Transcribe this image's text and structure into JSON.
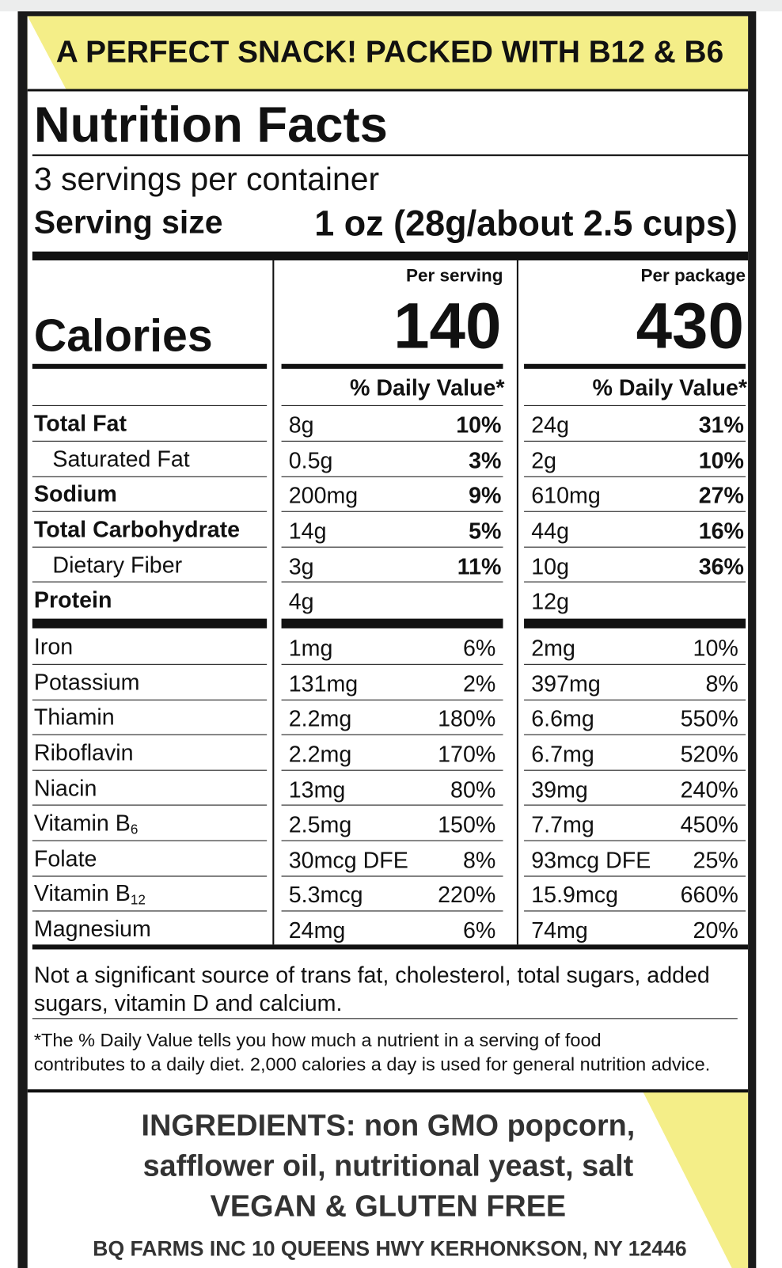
{
  "banner": "A PERFECT SNACK! PACKED WITH B12 & B6",
  "title": "Nutrition Facts",
  "servings_per_container": "3 servings per container",
  "serving_size_label": "Serving size",
  "serving_size_value": "1 oz (28g/about 2.5 cups)",
  "calories_label": "Calories",
  "columns": [
    {
      "header": "Per serving",
      "calories": "140",
      "dv_header": "% Daily Value*"
    },
    {
      "header": "Per package",
      "calories": "430",
      "dv_header": "% Daily Value*"
    }
  ],
  "main_nutrients": [
    {
      "name": "Total Fat",
      "bold": true,
      "values": [
        {
          "amount": "8g",
          "dv": "10%"
        },
        {
          "amount": "24g",
          "dv": "31%"
        }
      ]
    },
    {
      "name": "Saturated Fat",
      "indent": true,
      "values": [
        {
          "amount": "0.5g",
          "dv": "3%"
        },
        {
          "amount": "2g",
          "dv": "10%"
        }
      ]
    },
    {
      "name": "Sodium",
      "bold": true,
      "values": [
        {
          "amount": "200mg",
          "dv": "9%"
        },
        {
          "amount": "610mg",
          "dv": "27%"
        }
      ]
    },
    {
      "name": "Total Carbohydrate",
      "bold": true,
      "values": [
        {
          "amount": "14g",
          "dv": "5%"
        },
        {
          "amount": "44g",
          "dv": "16%"
        }
      ]
    },
    {
      "name": "Dietary Fiber",
      "indent": true,
      "values": [
        {
          "amount": "3g",
          "dv": "11%"
        },
        {
          "amount": "10g",
          "dv": "36%"
        }
      ]
    },
    {
      "name": "Protein",
      "bold": true,
      "values": [
        {
          "amount": "4g"
        },
        {
          "amount": "12g"
        }
      ]
    }
  ],
  "vitamins_minerals": [
    {
      "name": "Iron",
      "values": [
        {
          "amount": "1mg",
          "dv": "6%"
        },
        {
          "amount": "2mg",
          "dv": "10%"
        }
      ]
    },
    {
      "name": "Potassium",
      "values": [
        {
          "amount": "131mg",
          "dv": "2%"
        },
        {
          "amount": "397mg",
          "dv": "8%"
        }
      ]
    },
    {
      "name": "Thiamin",
      "values": [
        {
          "amount": "2.2mg",
          "dv": "180%"
        },
        {
          "amount": "6.6mg",
          "dv": "550%"
        }
      ]
    },
    {
      "name": "Riboflavin",
      "values": [
        {
          "amount": "2.2mg",
          "dv": "170%"
        },
        {
          "amount": "6.7mg",
          "dv": "520%"
        }
      ]
    },
    {
      "name": "Niacin",
      "values": [
        {
          "amount": "13mg",
          "dv": "80%"
        },
        {
          "amount": "39mg",
          "dv": "240%"
        }
      ]
    },
    {
      "name": "Vitamin B",
      "subscript": "6",
      "values": [
        {
          "amount": "2.5mg",
          "dv": "150%"
        },
        {
          "amount": "7.7mg",
          "dv": "450%"
        }
      ]
    },
    {
      "name": "Folate",
      "values": [
        {
          "amount": "30mcg DFE",
          "dv": "8%"
        },
        {
          "amount": "93mcg DFE",
          "dv": "25%"
        }
      ]
    },
    {
      "name": "Vitamin B",
      "subscript": "12",
      "values": [
        {
          "amount": "5.3mcg",
          "dv": "220%"
        },
        {
          "amount": "15.9mcg",
          "dv": "660%"
        }
      ]
    },
    {
      "name": "Magnesium",
      "values": [
        {
          "amount": "24mg",
          "dv": "6%"
        },
        {
          "amount": "74mg",
          "dv": "20%"
        }
      ]
    }
  ],
  "not_significant": [
    "Not a significant source of trans fat, cholesterol, total sugars, added",
    "sugars, vitamin D and calcium."
  ],
  "footnote": [
    "*The % Daily Value tells you how much a nutrient in a serving of food",
    "contributes to a daily diet. 2,000 calories a day is used for general nutrition advice."
  ],
  "ingredients": [
    "INGREDIENTS: non GMO popcorn,",
    "safflower oil, nutritional yeast, salt",
    "VEGAN & GLUTEN FREE"
  ],
  "address": "BQ FARMS INC 10 QUEENS HWY KERHONKSON, NY 12446"
}
